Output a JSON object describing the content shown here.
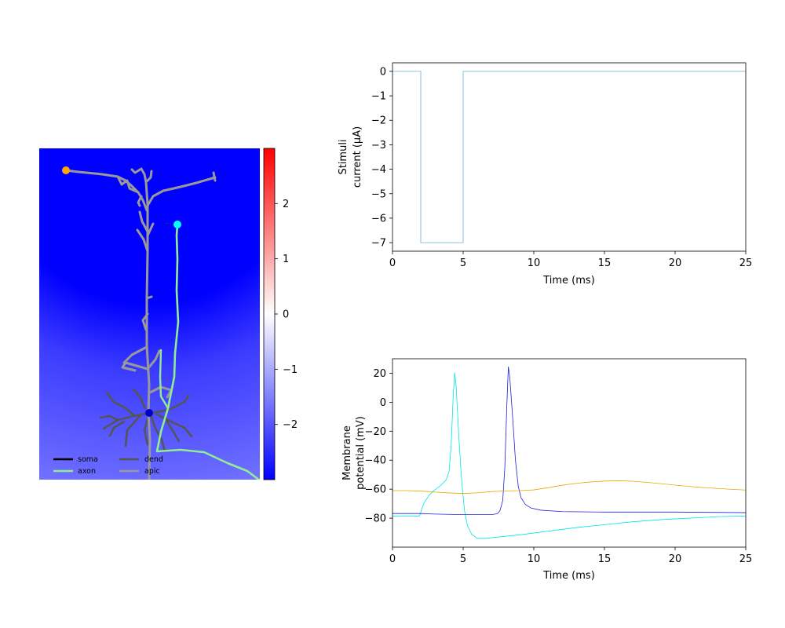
{
  "figure": {
    "morphology_legend": [
      {
        "label": "soma",
        "color": "#000000"
      },
      {
        "label": "axon",
        "color": "#90ee90"
      },
      {
        "label": "dend",
        "color": "#555555"
      },
      {
        "label": "apic",
        "color": "#999999"
      }
    ],
    "markers": [
      {
        "name": "stimulus-site",
        "color": "#00ffff"
      },
      {
        "name": "soma-site",
        "color": "#0000cd"
      },
      {
        "name": "apical-tuft-site",
        "color": "#ffa500"
      }
    ]
  },
  "chart_data": [
    {
      "type": "heatmap",
      "description_of_content": "extracellular potential field over neuron morphology",
      "colorbar": {
        "colormap": "bwr",
        "range": [
          -3,
          3
        ],
        "ticks": [
          2,
          1,
          0,
          -1,
          -2
        ],
        "tick_labels": [
          "2",
          "1",
          "0",
          "−1",
          "−2"
        ]
      },
      "legend_placement": "lower-left"
    },
    {
      "type": "line",
      "xlabel": "Time (ms)",
      "ylabel_lines": [
        "Stimuli",
        "current (μA)"
      ],
      "xlim": [
        0,
        25
      ],
      "ylim": [
        -7.35,
        0.35
      ],
      "x_ticks": [
        0,
        5,
        10,
        15,
        20,
        25
      ],
      "y_ticks": [
        0,
        -1,
        -2,
        -3,
        -4,
        -5,
        -6,
        -7
      ],
      "y_tick_labels": [
        "0",
        "−1",
        "−2",
        "−3",
        "−4",
        "−5",
        "−6",
        "−7"
      ],
      "grid": false,
      "series": [
        {
          "color": "#6baed6",
          "x": [
            0,
            2,
            2,
            5,
            5,
            25
          ],
          "y": [
            0,
            0,
            -7,
            -7,
            0,
            0
          ]
        }
      ]
    },
    {
      "type": "line",
      "xlabel": "Time (ms)",
      "ylabel_lines": [
        "Membrane",
        "potential (mV)"
      ],
      "xlim": [
        0,
        25
      ],
      "ylim": [
        -100,
        30
      ],
      "x_ticks": [
        0,
        5,
        10,
        15,
        20,
        25
      ],
      "y_ticks": [
        20,
        0,
        -20,
        -40,
        -60,
        -80
      ],
      "y_tick_labels": [
        "20",
        "0",
        "−20",
        "−40",
        "−60",
        "−80"
      ],
      "grid": false,
      "series": [
        {
          "color": "#00e5e5",
          "x": [
            0,
            1.9,
            2.0,
            2.2,
            2.6,
            3.0,
            3.4,
            3.8,
            4.0,
            4.15,
            4.3,
            4.4,
            4.5,
            4.7,
            4.9,
            5.1,
            5.3,
            5.6,
            6.0,
            6.5,
            7.5,
            9,
            11,
            13,
            15,
            17,
            19,
            21,
            23,
            25
          ],
          "y": [
            -78.5,
            -78.5,
            -76,
            -70,
            -64,
            -60.5,
            -57.5,
            -53.5,
            -48,
            -30,
            5,
            20.5,
            12,
            -25,
            -55,
            -75,
            -85,
            -91,
            -94,
            -94,
            -93,
            -91.5,
            -89,
            -86.5,
            -84.5,
            -82.5,
            -81,
            -80,
            -79,
            -78.5
          ]
        },
        {
          "color": "#2020dd",
          "x": [
            0,
            2,
            3,
            5,
            7,
            7.4,
            7.6,
            7.8,
            7.95,
            8.1,
            8.2,
            8.3,
            8.5,
            8.7,
            8.9,
            9.1,
            9.4,
            9.8,
            10.5,
            12,
            15,
            20,
            25
          ],
          "y": [
            -76.8,
            -76.8,
            -77.2,
            -77.6,
            -77.6,
            -77,
            -75,
            -68,
            -45,
            0,
            24.5,
            17,
            -10,
            -40,
            -58,
            -66,
            -70.5,
            -73,
            -74.5,
            -75.5,
            -75.8,
            -75.8,
            -76.2
          ]
        },
        {
          "color": "#e6a800",
          "x": [
            0,
            1,
            2,
            3,
            4,
            5,
            6,
            7,
            8,
            9,
            10,
            11,
            12,
            13,
            14,
            15,
            16,
            17,
            18,
            19,
            20,
            21,
            22,
            23,
            24,
            25
          ],
          "y": [
            -61,
            -61,
            -61.3,
            -62,
            -62.6,
            -63,
            -62.5,
            -61.7,
            -61.2,
            -61,
            -60.5,
            -59,
            -57.3,
            -56,
            -55,
            -54.4,
            -54.2,
            -54.5,
            -55.3,
            -56.2,
            -57.2,
            -58.1,
            -58.9,
            -59.5,
            -60.1,
            -60.6
          ]
        }
      ]
    }
  ]
}
